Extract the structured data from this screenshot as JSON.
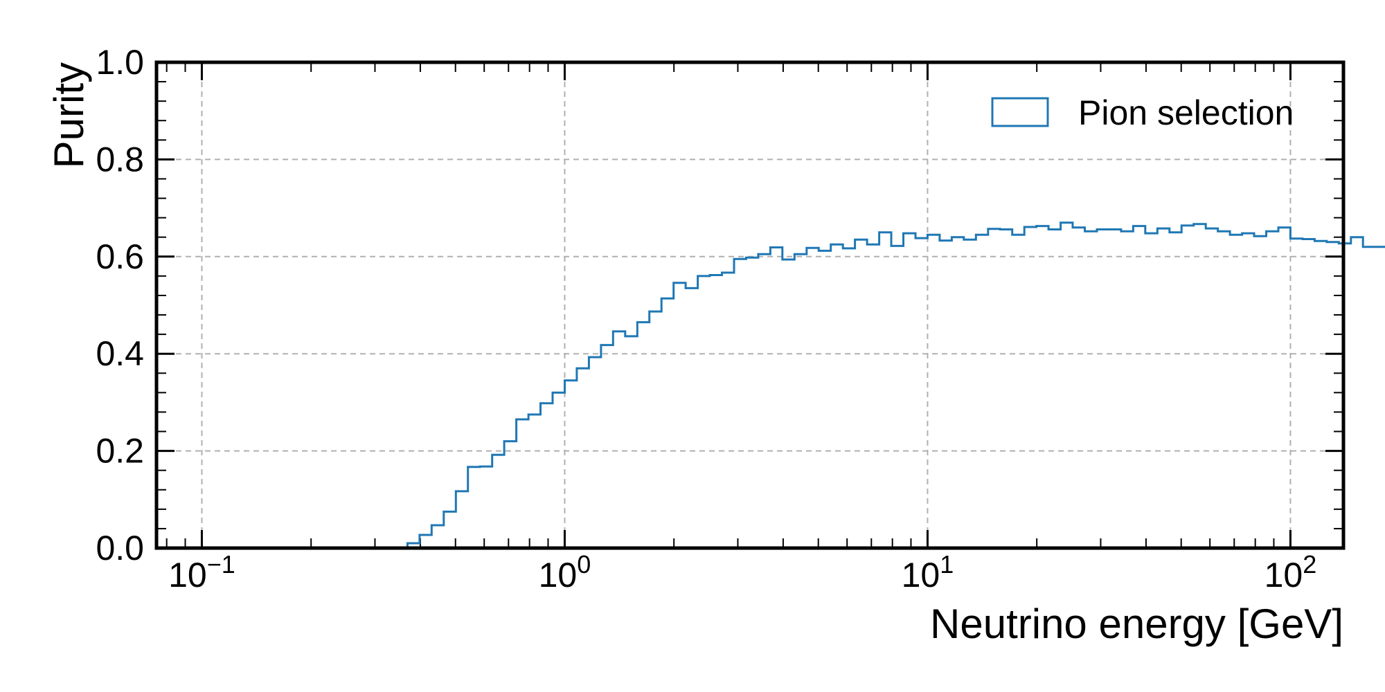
{
  "chart_data": {
    "type": "histogram-step",
    "xlabel": "Neutrino energy [GeV]",
    "ylabel": "Purity",
    "xscale": "log",
    "xlim": [
      0.075,
      140
    ],
    "ylim": [
      0.0,
      1.0
    ],
    "x_ticks": [
      {
        "value": 0.1,
        "base": "10",
        "exp": "−1"
      },
      {
        "value": 1,
        "base": "10",
        "exp": "0"
      },
      {
        "value": 10,
        "base": "10",
        "exp": "1"
      },
      {
        "value": 100,
        "base": "10",
        "exp": "2"
      }
    ],
    "y_ticks": [
      "0.0",
      "0.2",
      "0.4",
      "0.6",
      "0.8",
      "1.0"
    ],
    "grid": true,
    "legend": {
      "location": "upper right",
      "entries": [
        "Pion selection"
      ]
    },
    "series": [
      {
        "name": "Pion selection",
        "color": "#1f77b4",
        "bins_per_decade": 30,
        "first_bin_low_edge": 0.1,
        "values": [
          0,
          0,
          0,
          0,
          0,
          0,
          0,
          0,
          0,
          0,
          0,
          0,
          0,
          0,
          0,
          0,
          0,
          0.01,
          0.027,
          0.047,
          0.075,
          0.117,
          0.167,
          0.168,
          0.192,
          0.22,
          0.265,
          0.275,
          0.298,
          0.32,
          0.345,
          0.37,
          0.393,
          0.418,
          0.446,
          0.436,
          0.465,
          0.487,
          0.514,
          0.546,
          0.535,
          0.56,
          0.562,
          0.567,
          0.595,
          0.598,
          0.605,
          0.619,
          0.594,
          0.605,
          0.618,
          0.612,
          0.625,
          0.617,
          0.635,
          0.625,
          0.65,
          0.622,
          0.648,
          0.638,
          0.645,
          0.633,
          0.64,
          0.635,
          0.645,
          0.657,
          0.656,
          0.645,
          0.661,
          0.663,
          0.656,
          0.67,
          0.66,
          0.652,
          0.656,
          0.656,
          0.652,
          0.663,
          0.648,
          0.658,
          0.65,
          0.664,
          0.667,
          0.658,
          0.652,
          0.645,
          0.648,
          0.642,
          0.652,
          0.66,
          0.637,
          0.636,
          0.632,
          0.63,
          0.627,
          0.64,
          0.62,
          0.62
        ]
      }
    ]
  }
}
